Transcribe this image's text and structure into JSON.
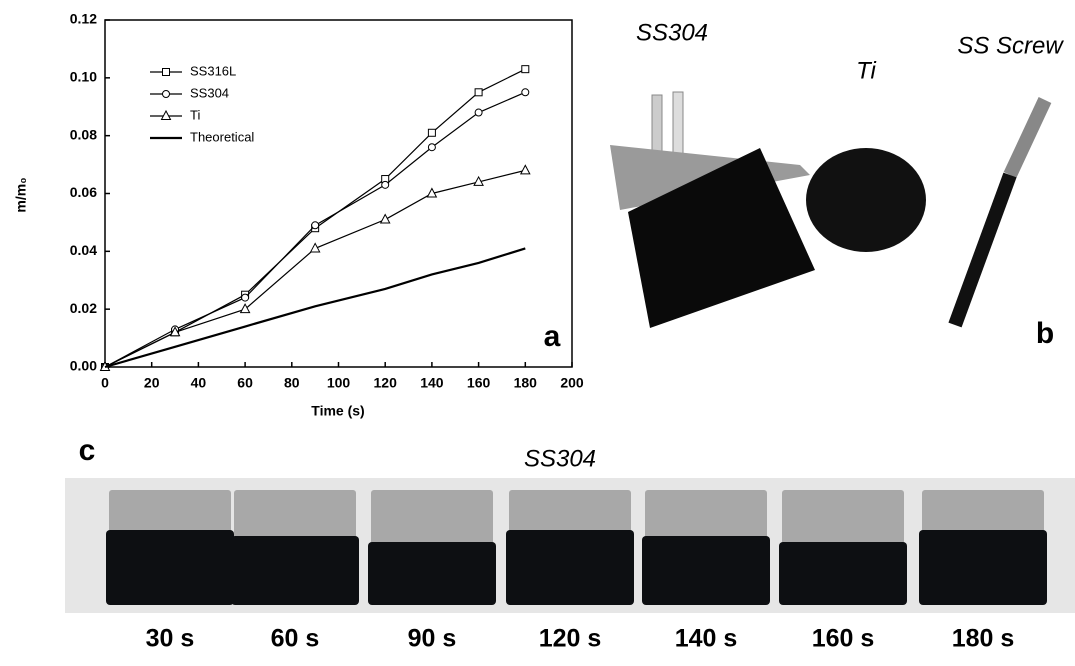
{
  "chart_data": {
    "type": "line",
    "x_label": "Time (s)",
    "y_label": "m/m₀",
    "annotation": "a",
    "x": [
      0,
      30,
      60,
      90,
      120,
      140,
      160,
      180
    ],
    "series": [
      {
        "name": "SS316L",
        "color": "#000000",
        "marker": "square",
        "values": [
          0,
          0.012,
          0.025,
          0.048,
          0.065,
          0.081,
          0.095,
          0.103
        ]
      },
      {
        "name": "SS304",
        "color": "#000000",
        "marker": "circle",
        "values": [
          0,
          0.013,
          0.024,
          0.049,
          0.063,
          0.076,
          0.088,
          0.095
        ]
      },
      {
        "name": "Ti",
        "color": "#000000",
        "marker": "triangle",
        "values": [
          0,
          0.012,
          0.02,
          0.041,
          0.051,
          0.06,
          0.064,
          0.068
        ]
      },
      {
        "name": "Theoretical",
        "color": "#000000",
        "marker": "none",
        "values": [
          0,
          0.007,
          0.014,
          0.021,
          0.027,
          0.032,
          0.036,
          0.041
        ]
      }
    ],
    "xlim": [
      0,
      200
    ],
    "xticks": [
      0,
      20,
      40,
      60,
      80,
      100,
      120,
      140,
      160,
      180,
      200
    ],
    "ylim": [
      0,
      0.12
    ],
    "yticks": [
      {
        "value": 0,
        "label": "0.00"
      },
      {
        "value": 0.02,
        "label": "0.02"
      },
      {
        "value": 0.04,
        "label": "0.04"
      },
      {
        "value": 0.06,
        "label": "0.06"
      },
      {
        "value": 0.08,
        "label": "0.08"
      },
      {
        "value": 0.1,
        "label": "0.10"
      },
      {
        "value": 0.12,
        "label": "0.12"
      }
    ],
    "grid": false
  },
  "photos": {
    "label": "b",
    "items": [
      "SS304",
      "Ti",
      "SS Screw"
    ]
  },
  "strip": {
    "label": "c",
    "title": "SS304",
    "captions": [
      "30 s",
      "60 s",
      "90 s",
      "120 s",
      "140 s",
      "160 s",
      "180 s"
    ]
  }
}
